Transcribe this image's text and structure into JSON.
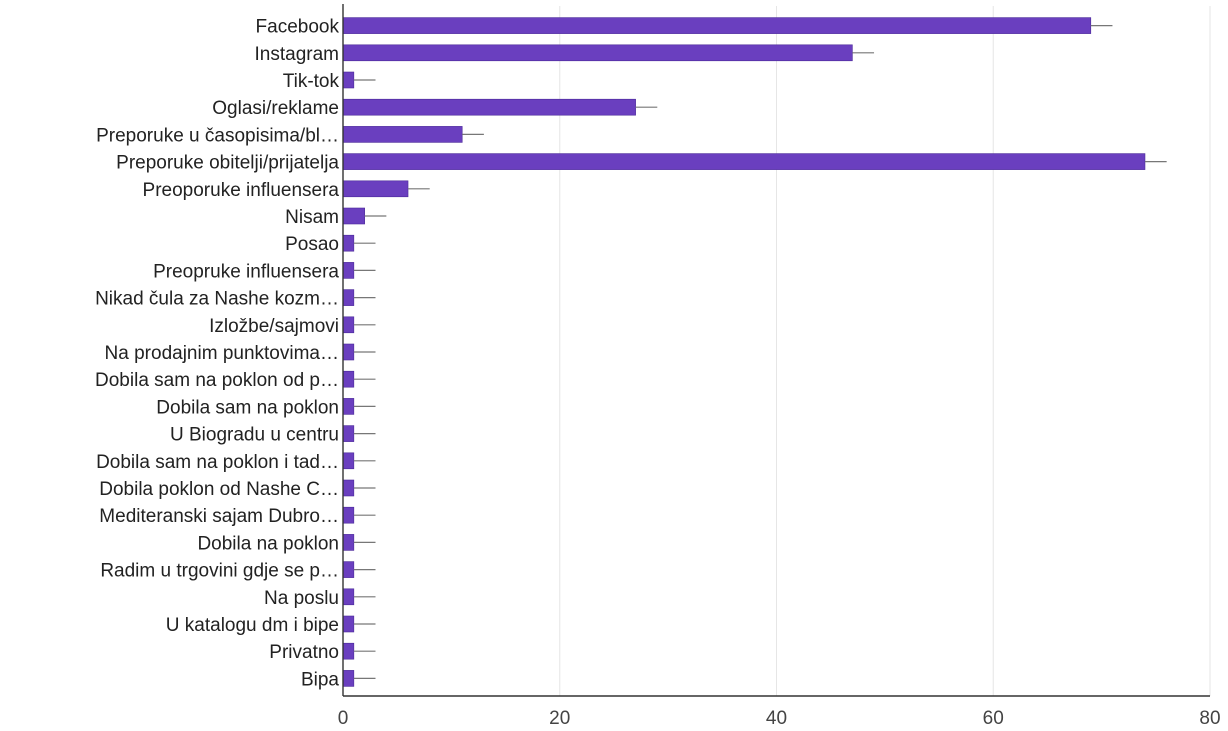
{
  "chart_data": {
    "type": "bar",
    "orientation": "horizontal",
    "categories": [
      "Facebook",
      "Instagram",
      "Tik-tok",
      "Oglasi/reklame",
      "Preporuke u časopisima/bl…",
      "Preporuke obitelji/prijatelja",
      "Preoporuke influensera",
      "Nisam",
      "Posao",
      "Preopruke influensera",
      "Nikad čula za Nashe kozm…",
      "Izložbe/sajmovi",
      "Na prodajnim punktovima…",
      "Dobila sam na poklon od p…",
      "Dobila sam na poklon",
      "U Biogradu u centru",
      "Dobila sam na poklon i tad…",
      "Dobila poklon od Nashe C…",
      "Mediteranski sajam Dubro…",
      "Dobila na poklon",
      "Radim u trgovini gdje se p…",
      "Na poslu",
      "U katalogu dm i bipe",
      "Privatno",
      "Bipa"
    ],
    "values": [
      69,
      47,
      1,
      27,
      11,
      74,
      6,
      2,
      1,
      1,
      1,
      1,
      1,
      1,
      1,
      1,
      1,
      1,
      1,
      1,
      1,
      1,
      1,
      1,
      1
    ],
    "error_bars": true,
    "xlim": [
      0,
      80
    ],
    "xticks": [
      0,
      20,
      40,
      60,
      80
    ],
    "grid": "vertical",
    "title": "",
    "xlabel": "",
    "ylabel": "",
    "colors": {
      "bar": "#6a3fbf",
      "bar_edge": "#4b2a99",
      "grid": "#e6e6e6",
      "axis": "#333333",
      "error": "#777777"
    }
  }
}
